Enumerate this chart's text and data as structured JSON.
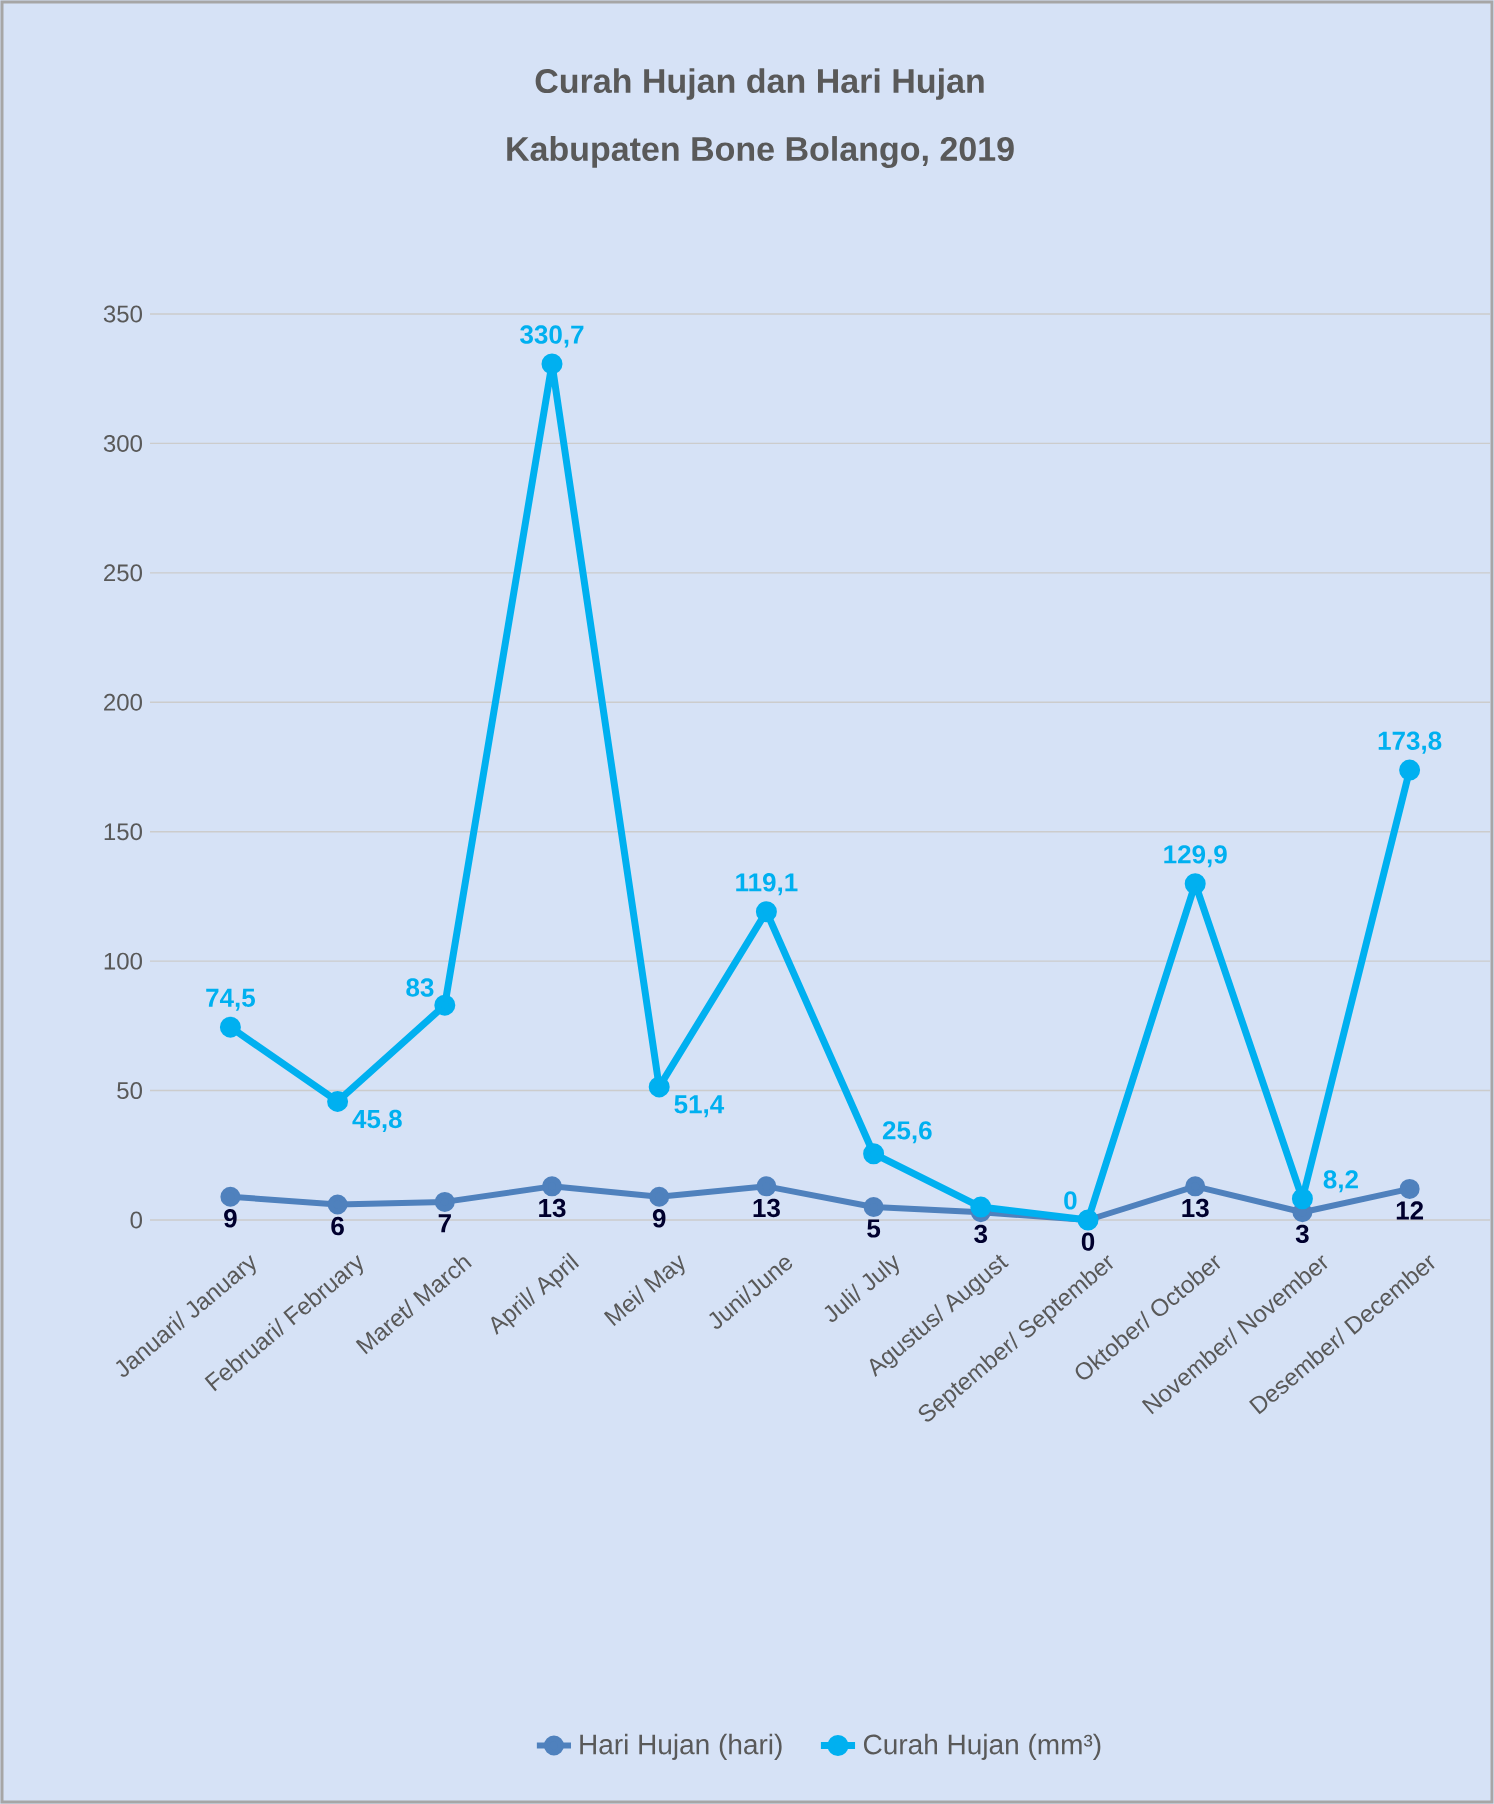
{
  "chart_data": {
    "type": "line",
    "title": "Curah Hujan dan Hari Hujan",
    "subtitle": "Kabupaten Bone Bolango, 2019",
    "categories": [
      "Januari/ January",
      "Februari/ February",
      "Maret/ March",
      "April/ April",
      "Mei/ May",
      "Juni/June",
      "Juli/ July",
      "Agustus/ August",
      "September/ September",
      "Oktober/ October",
      "November/ November",
      "Desember/ December"
    ],
    "series": [
      {
        "name": "Hari Hujan (hari)",
        "color": "#4f81bd",
        "values": [
          9,
          6,
          7,
          13,
          9,
          13,
          5,
          3,
          0,
          13,
          3,
          12
        ],
        "value_labels": [
          "9",
          "6",
          "7",
          "13",
          "9",
          "13",
          "5",
          "3",
          "0",
          "13",
          "3",
          "12"
        ]
      },
      {
        "name": "Curah Hujan (mm³)",
        "color": "#00b0f0",
        "values": [
          74.5,
          45.8,
          83,
          330.7,
          51.4,
          119.1,
          25.6,
          5,
          0,
          129.9,
          8.2,
          173.8
        ],
        "value_labels": [
          "74,5",
          "45,8",
          "83",
          "330,7",
          "51,4",
          "119,1",
          "25,6",
          null,
          "0",
          "129,9",
          "8,2",
          "173,8"
        ]
      }
    ],
    "ylim": [
      0,
      350
    ],
    "yticks": [
      0,
      50,
      100,
      150,
      200,
      250,
      300,
      350
    ],
    "grid": "y",
    "legend": "bottom",
    "marker": "circle"
  }
}
